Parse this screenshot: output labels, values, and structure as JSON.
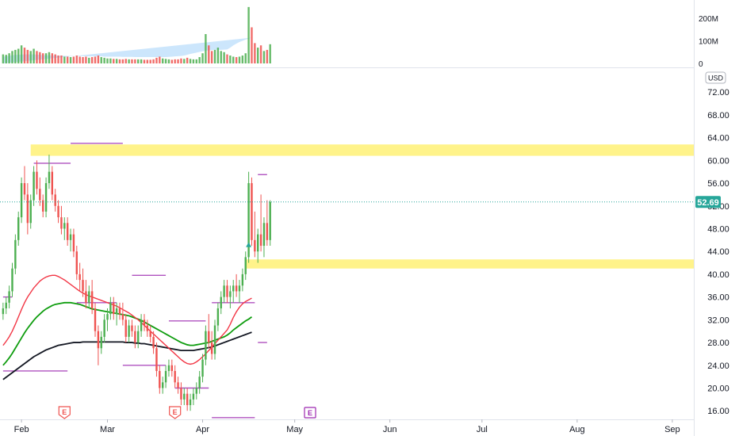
{
  "chart_data": {
    "type": "candlestick",
    "currency_label": "USD",
    "y_ticks": [
      "72.00",
      "68.00",
      "64.00",
      "60.00",
      "56.00",
      "52.00",
      "48.00",
      "44.00",
      "40.00",
      "36.00",
      "32.00",
      "28.00",
      "24.00",
      "20.00",
      "16.00"
    ],
    "ylim": [
      14.5,
      76.2
    ],
    "x_ticks": [
      {
        "label": "Feb",
        "day": 0
      },
      {
        "label": "Mar",
        "day": 28
      },
      {
        "label": "Apr",
        "day": 59
      },
      {
        "label": "May",
        "day": 89
      },
      {
        "label": "Jun",
        "day": 120
      },
      {
        "label": "Jul",
        "day": 150
      },
      {
        "label": "Aug",
        "day": 181
      },
      {
        "label": "Sep",
        "day": 212
      }
    ],
    "xlim": [
      -7,
      219
    ],
    "last_price": "52.69",
    "last_price_value": 52.69,
    "colors": {
      "up": "#4caf50",
      "down": "#ef5350",
      "ma_fast": "#f23645",
      "ma_mid": "#089981",
      "ma_slow": "#131722",
      "zone": "#fff176",
      "level": "#9c27b0",
      "badge": "#26a69a",
      "volume_ma": "#bbdefb"
    },
    "volume_ticks": [
      "200M",
      "100M",
      "0"
    ],
    "volume_max": 260,
    "candles": [
      [
        -6,
        33,
        35,
        32,
        34,
        40
      ],
      [
        -5,
        34,
        36,
        33,
        35,
        38
      ],
      [
        -4,
        35,
        38,
        34,
        37,
        45
      ],
      [
        -3,
        37,
        42,
        36,
        41,
        55
      ],
      [
        -2,
        41,
        47,
        40,
        46,
        60
      ],
      [
        -1,
        46,
        51,
        45,
        50,
        65
      ],
      [
        0,
        50,
        57,
        49,
        56,
        80
      ],
      [
        1,
        56,
        59,
        53,
        54,
        70
      ],
      [
        2,
        54,
        56,
        47,
        49,
        60
      ],
      [
        3,
        49,
        54,
        48,
        53,
        55
      ],
      [
        4,
        53,
        59,
        52,
        58,
        65
      ],
      [
        5,
        58,
        60,
        54,
        55,
        55
      ],
      [
        6,
        55,
        57,
        52,
        53,
        50
      ],
      [
        7,
        53,
        54,
        50,
        51,
        45
      ],
      [
        8,
        51,
        57,
        50,
        56,
        45
      ],
      [
        9,
        56,
        61,
        55,
        58,
        50
      ],
      [
        10,
        58,
        59,
        53,
        54,
        45
      ],
      [
        11,
        54,
        55,
        51,
        52,
        40
      ],
      [
        12,
        52,
        53,
        49,
        50,
        35
      ],
      [
        13,
        50,
        52,
        47,
        48,
        35
      ],
      [
        14,
        48,
        50,
        46,
        49,
        30
      ],
      [
        15,
        49,
        50,
        45,
        46,
        30
      ],
      [
        16,
        46,
        48,
        44,
        47,
        28
      ],
      [
        17,
        47,
        48,
        43,
        44,
        30
      ],
      [
        18,
        44,
        45,
        39,
        40,
        35
      ],
      [
        19,
        40,
        42,
        37,
        39,
        30
      ],
      [
        20,
        39,
        41,
        36,
        37,
        28
      ],
      [
        21,
        37,
        39,
        34,
        35,
        30
      ],
      [
        22,
        35,
        38,
        34,
        37,
        25
      ],
      [
        23,
        37,
        39,
        33,
        34,
        28
      ],
      [
        24,
        34,
        35,
        29,
        30,
        30
      ],
      [
        25,
        30,
        31,
        24,
        27,
        35
      ],
      [
        26,
        27,
        30,
        26,
        29,
        28
      ],
      [
        27,
        29,
        33,
        28,
        32,
        25
      ],
      [
        28,
        32,
        34,
        30,
        33,
        22
      ],
      [
        29,
        33,
        36,
        32,
        35,
        22
      ],
      [
        30,
        35,
        36,
        32,
        33,
        20
      ],
      [
        31,
        33,
        35,
        31,
        34,
        20
      ],
      [
        32,
        34,
        35,
        32,
        33,
        18
      ],
      [
        33,
        33,
        35,
        31,
        32,
        18
      ],
      [
        34,
        32,
        33,
        28,
        29,
        20
      ],
      [
        35,
        29,
        32,
        28,
        31,
        18
      ],
      [
        36,
        31,
        32,
        29,
        30,
        18
      ],
      [
        37,
        30,
        31,
        27,
        28,
        18
      ],
      [
        38,
        28,
        31,
        27,
        30,
        18
      ],
      [
        39,
        30,
        33,
        29,
        32,
        18
      ],
      [
        40,
        32,
        33,
        30,
        31,
        16
      ],
      [
        41,
        31,
        32,
        29,
        30,
        16
      ],
      [
        42,
        30,
        31,
        28,
        29,
        16
      ],
      [
        43,
        29,
        30,
        26,
        27,
        18
      ],
      [
        44,
        27,
        28,
        22,
        23,
        25
      ],
      [
        45,
        23,
        24,
        19,
        20,
        30
      ],
      [
        46,
        20,
        22,
        19,
        21,
        22
      ],
      [
        47,
        21,
        24,
        20,
        23,
        20
      ],
      [
        48,
        23,
        25,
        22,
        24,
        18
      ],
      [
        49,
        24,
        25,
        22,
        23,
        16
      ],
      [
        50,
        23,
        24,
        20,
        21,
        18
      ],
      [
        51,
        21,
        22,
        19,
        20,
        18
      ],
      [
        52,
        20,
        21,
        17,
        18,
        22
      ],
      [
        53,
        18,
        20,
        17,
        19,
        20
      ],
      [
        54,
        19,
        20,
        16,
        17,
        25
      ],
      [
        55,
        17,
        19,
        16,
        18,
        20
      ],
      [
        56,
        18,
        20,
        17,
        19,
        18
      ],
      [
        57,
        19,
        21,
        18,
        20,
        18
      ],
      [
        58,
        20,
        23,
        19,
        22,
        28
      ],
      [
        59,
        22,
        26,
        21,
        25,
        45
      ],
      [
        60,
        25,
        31,
        24,
        30,
        130
      ],
      [
        61,
        30,
        33,
        27,
        28,
        80
      ],
      [
        62,
        28,
        30,
        25,
        26,
        55
      ],
      [
        63,
        26,
        32,
        25,
        31,
        60
      ],
      [
        64,
        31,
        35,
        30,
        34,
        70
      ],
      [
        65,
        34,
        37,
        33,
        36,
        55
      ],
      [
        66,
        36,
        39,
        35,
        38,
        50
      ],
      [
        67,
        38,
        39,
        35,
        36,
        40
      ],
      [
        68,
        36,
        38,
        34,
        37,
        35
      ],
      [
        69,
        37,
        39,
        35,
        38,
        30
      ],
      [
        70,
        38,
        40,
        36,
        37,
        28
      ],
      [
        71,
        37,
        39,
        35,
        38,
        30
      ],
      [
        72,
        38,
        41,
        37,
        40,
        35
      ],
      [
        73,
        40,
        44,
        39,
        43,
        45
      ],
      [
        74,
        43,
        58,
        42,
        56,
        250
      ],
      [
        75,
        56,
        57,
        45,
        46,
        160
      ],
      [
        76,
        46,
        51,
        43,
        44,
        90
      ],
      [
        77,
        44,
        48,
        42,
        47,
        70
      ],
      [
        78,
        47,
        54,
        44,
        45,
        80
      ],
      [
        79,
        45,
        50,
        43,
        49,
        55
      ],
      [
        80,
        49,
        53,
        45,
        46,
        60
      ],
      [
        81,
        46,
        53,
        45,
        52.69,
        85
      ]
    ],
    "volume_ma": [
      30,
      32,
      34,
      36,
      38,
      38,
      39,
      40,
      40,
      40,
      40,
      39,
      38,
      37,
      36,
      36,
      35,
      35,
      34,
      34,
      34,
      33,
      33,
      33,
      32,
      32,
      32,
      32,
      31,
      31,
      31,
      31,
      31,
      30,
      30,
      30,
      30,
      30,
      30,
      29,
      29,
      29,
      29,
      28,
      28,
      28,
      28,
      28,
      28,
      28,
      28,
      28,
      28,
      28,
      29,
      30,
      31,
      32,
      33,
      35,
      38,
      42,
      45,
      48,
      51,
      54,
      56,
      58,
      59,
      60,
      60,
      60,
      61,
      62,
      70,
      80,
      88,
      95,
      100,
      106,
      110,
      114
    ],
    "ma_fast_label": "",
    "ma_fast": [
      27.5,
      28.2,
      29.0,
      30.0,
      31.2,
      32.5,
      33.8,
      35.0,
      36.0,
      36.8,
      37.6,
      38.2,
      38.8,
      39.2,
      39.5,
      39.7,
      39.8,
      39.8,
      39.6,
      39.3,
      39.0,
      38.6,
      38.2,
      37.8,
      37.4,
      37.0,
      36.7,
      36.4,
      36.2,
      36.0,
      35.8,
      35.6,
      35.4,
      35.2,
      35.0,
      34.8,
      34.6,
      34.4,
      34.1,
      33.8,
      33.5,
      33.2,
      32.8,
      32.4,
      32.0,
      31.5,
      31.0,
      30.5,
      30.0,
      29.5,
      29.0,
      28.5,
      28.0,
      27.5,
      27.0,
      26.5,
      26.0,
      25.5,
      25.0,
      24.6,
      24.3,
      24.2,
      24.3,
      24.6,
      25.0,
      25.5,
      26.0,
      26.6,
      27.2,
      27.8,
      28.4,
      29.0,
      29.6,
      30.2,
      31.2,
      32.4,
      33.4,
      34.2,
      34.8,
      35.2,
      35.5,
      35.8
    ],
    "ma_mid": [
      24.0,
      24.6,
      25.3,
      26.1,
      27.0,
      27.9,
      28.8,
      29.7,
      30.5,
      31.2,
      31.9,
      32.5,
      33.0,
      33.5,
      33.9,
      34.2,
      34.5,
      34.7,
      34.8,
      34.9,
      35.0,
      35.0,
      35.0,
      34.9,
      34.8,
      34.7,
      34.5,
      34.3,
      34.1,
      33.9,
      33.8,
      33.7,
      33.6,
      33.5,
      33.4,
      33.3,
      33.2,
      33.1,
      33.0,
      32.9,
      32.8,
      32.7,
      32.5,
      32.3,
      32.1,
      31.9,
      31.6,
      31.3,
      31.0,
      30.7,
      30.4,
      30.1,
      29.8,
      29.5,
      29.2,
      28.9,
      28.6,
      28.3,
      28.0,
      27.8,
      27.6,
      27.5,
      27.5,
      27.6,
      27.7,
      27.8,
      27.9,
      28.0,
      28.2,
      28.4,
      28.6,
      28.8,
      29.0,
      29.3,
      29.7,
      30.2,
      30.6,
      31.0,
      31.4,
      31.8,
      32.1,
      32.5
    ],
    "ma_slow": [
      21.5,
      21.9,
      22.3,
      22.7,
      23.1,
      23.5,
      23.9,
      24.3,
      24.7,
      25.1,
      25.5,
      25.8,
      26.1,
      26.4,
      26.7,
      26.9,
      27.1,
      27.3,
      27.5,
      27.6,
      27.7,
      27.8,
      27.9,
      28.0,
      28.0,
      28.0,
      28.1,
      28.1,
      28.1,
      28.1,
      28.1,
      28.1,
      28.1,
      28.1,
      28.1,
      28.1,
      28.1,
      28.1,
      28.1,
      28.1,
      28.0,
      28.0,
      28.0,
      27.9,
      27.9,
      27.8,
      27.8,
      27.7,
      27.6,
      27.5,
      27.4,
      27.3,
      27.2,
      27.1,
      27.0,
      26.9,
      26.8,
      26.7,
      26.6,
      26.6,
      26.6,
      26.6,
      26.6,
      26.7,
      26.8,
      26.9,
      27.0,
      27.1,
      27.2,
      27.4,
      27.6,
      27.8,
      28.0,
      28.2,
      28.4,
      28.6,
      28.8,
      29.0,
      29.2,
      29.4,
      29.6,
      29.8
    ],
    "zones": [
      {
        "y1": 60.8,
        "y2": 62.8,
        "x_start": 3
      },
      {
        "y1": 41.0,
        "y2": 42.6,
        "x_start": 73
      }
    ],
    "levels": [
      {
        "y": 63.0,
        "x1": 16,
        "x2": 33
      },
      {
        "y": 59.5,
        "x1": 4,
        "x2": 16
      },
      {
        "y": 57.5,
        "x1": 77,
        "x2": 80
      },
      {
        "y": 39.8,
        "x1": 36,
        "x2": 47
      },
      {
        "y": 36.0,
        "x1": -6,
        "x2": -3
      },
      {
        "y": 35.0,
        "x1": 18,
        "x2": 31
      },
      {
        "y": 35.0,
        "x1": 62,
        "x2": 76
      },
      {
        "y": 31.8,
        "x1": 48,
        "x2": 60
      },
      {
        "y": 28.0,
        "x1": 77,
        "x2": 80
      },
      {
        "y": 24.0,
        "x1": 33,
        "x2": 47
      },
      {
        "y": 23.0,
        "x1": -6,
        "x2": 15
      },
      {
        "y": 20.0,
        "x1": 50,
        "x2": 61
      },
      {
        "y": 14.8,
        "x1": 62,
        "x2": 76
      }
    ],
    "earnings": [
      {
        "label": "E",
        "x": 14,
        "style": "down"
      },
      {
        "label": "E",
        "x": 50,
        "style": "down"
      },
      {
        "label": "E",
        "x": 94,
        "style": "future"
      }
    ],
    "marker_triangle": {
      "x": 74,
      "y": 45.2
    }
  }
}
